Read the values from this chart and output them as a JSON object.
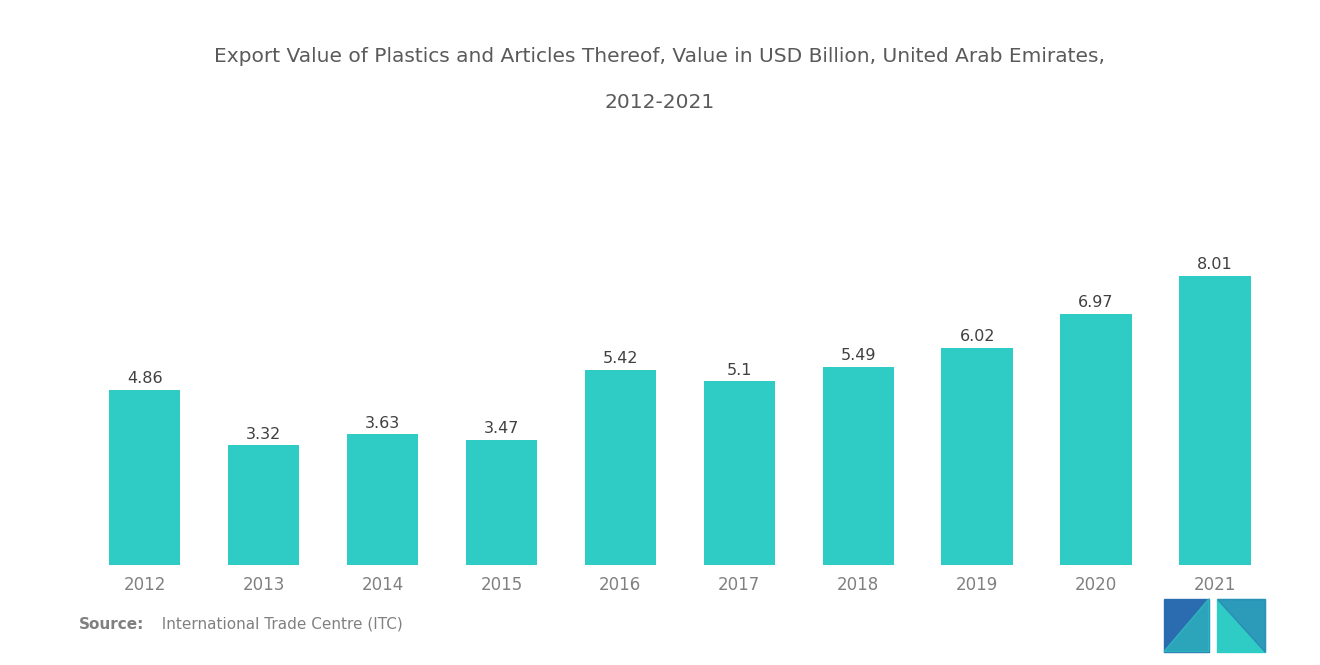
{
  "title_line1": "Export Value of Plastics and Articles Thereof, Value in USD Billion, United Arab Emirates,",
  "title_line2": "2012-2021",
  "years": [
    2012,
    2013,
    2014,
    2015,
    2016,
    2017,
    2018,
    2019,
    2020,
    2021
  ],
  "values": [
    4.86,
    3.32,
    3.63,
    3.47,
    5.42,
    5.1,
    5.49,
    6.02,
    6.97,
    8.01
  ],
  "bar_color": "#2ECCC4",
  "background_color": "#FFFFFF",
  "title_fontsize": 14.5,
  "label_fontsize": 11.5,
  "tick_fontsize": 12,
  "source_bold": "Source:",
  "source_rest": "  International Trade Centre (ITC)",
  "source_fontsize": 11,
  "ylim": [
    0,
    10.5
  ],
  "title_color": "#5A5A5A",
  "tick_color": "#808080",
  "label_color": "#404040",
  "logo_blue": "#2B6CB0",
  "logo_teal": "#2ECCC4"
}
